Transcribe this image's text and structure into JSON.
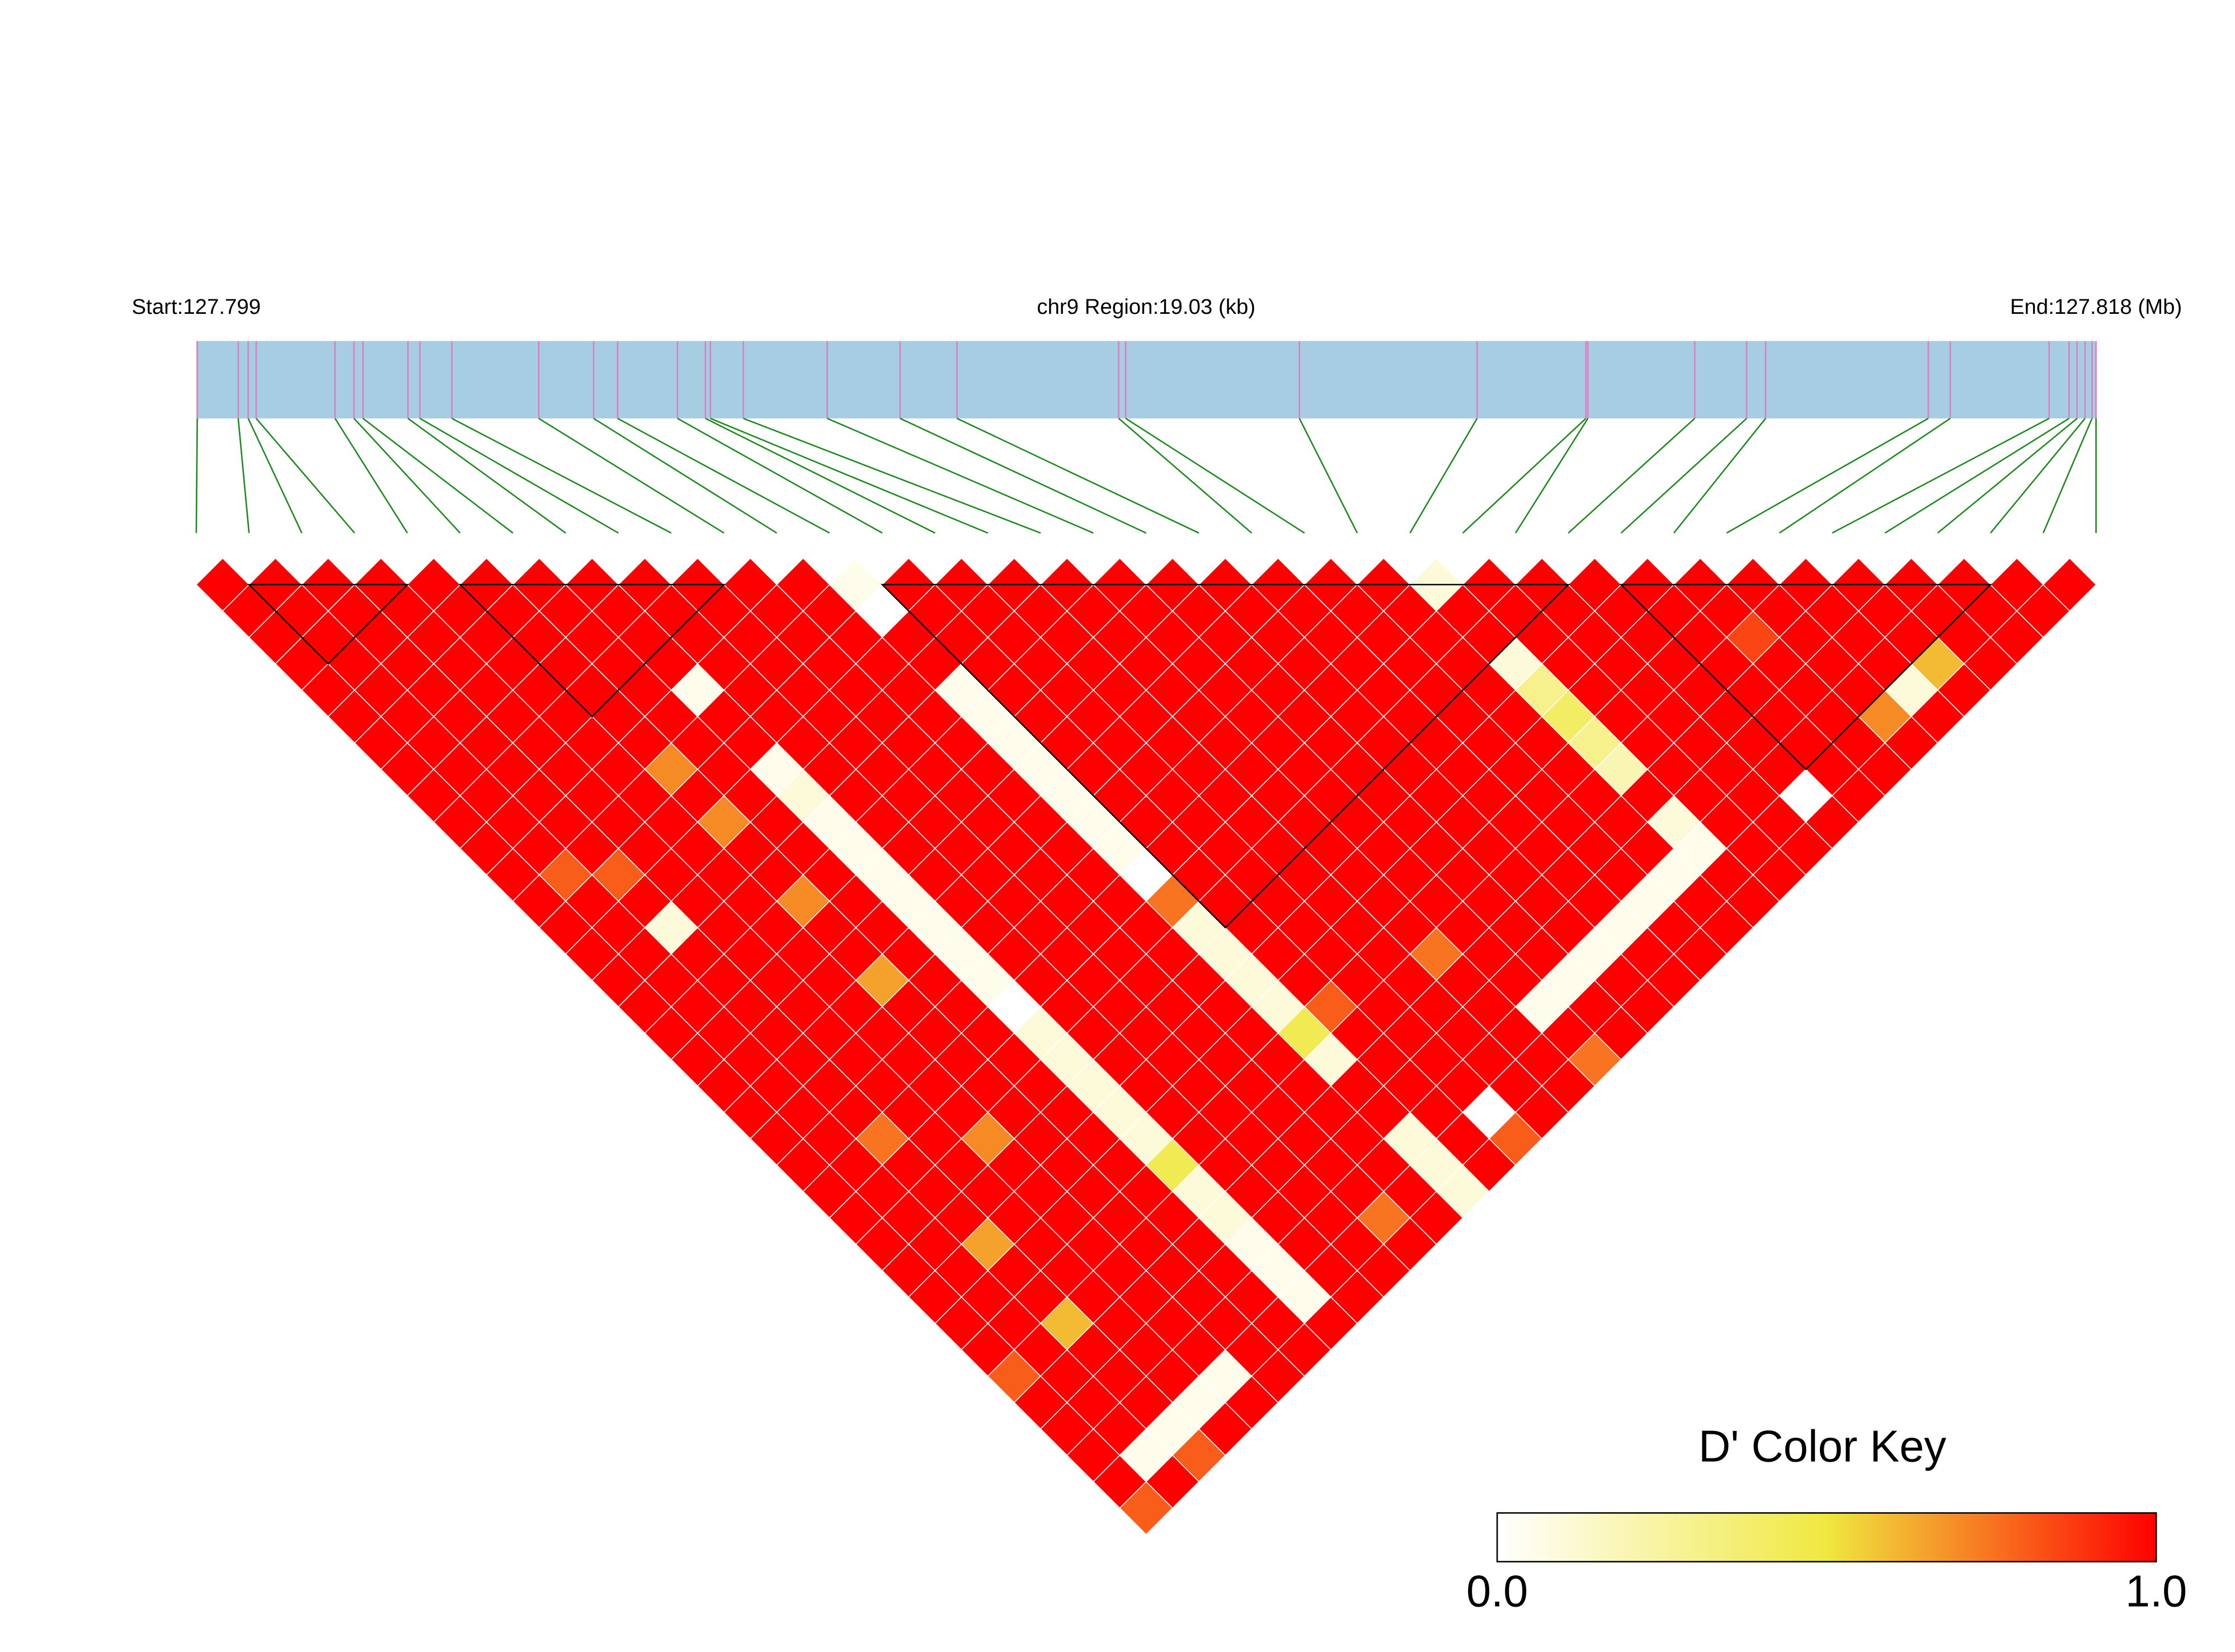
{
  "chart_data": {
    "type": "ld_heatmap",
    "start_label": "Start:127.799",
    "region_label": "chr9 Region:19.03 (kb)",
    "end_label": "End:127.818 (Mb)",
    "legend_title": "D' Color Key",
    "colorbar_ticks": [
      {
        "value": 0,
        "label": "0.0"
      },
      {
        "value": 1,
        "label": "1.0"
      }
    ],
    "color_scale": [
      "#ffffff",
      "#f0e840",
      "#ff0000"
    ],
    "track_color": "#a6cde1",
    "snp_line_color": "#e07cc4",
    "connector_color": "#1a8a1a",
    "xlim": [
      127.799,
      127.81803
    ],
    "snp_positions": [
      127.79901,
      127.79942,
      127.79952,
      127.7996,
      127.80039,
      127.80058,
      127.80067,
      127.80112,
      127.80124,
      127.80156,
      127.80243,
      127.80298,
      127.80322,
      127.80382,
      127.8041,
      127.80415,
      127.80448,
      127.80532,
      127.80605,
      127.80662,
      127.80824,
      127.80831,
      127.81005,
      127.81183,
      127.81292,
      127.81294,
      127.81401,
      127.81453,
      127.81472,
      127.81635,
      127.81657,
      127.81756,
      127.81776,
      127.81784,
      127.81792,
      127.81799,
      127.81803
    ],
    "blocks": [
      [
        1,
        4
      ],
      [
        5,
        10
      ],
      [
        13,
        26
      ],
      [
        27,
        34
      ]
    ],
    "ld_matrix": [
      [
        1,
        1,
        1,
        1,
        1,
        1,
        1,
        1,
        1,
        1,
        1,
        1,
        1,
        1,
        1,
        1,
        1,
        1,
        1,
        1,
        1,
        1,
        1,
        1,
        1,
        1,
        1,
        1,
        1,
        1,
        0.8,
        1,
        1,
        1,
        1,
        0.8
      ],
      [
        1,
        1,
        1,
        1,
        1,
        1,
        1,
        1,
        1,
        1,
        1,
        0.8,
        1,
        1,
        1,
        1,
        1,
        1,
        1,
        1,
        1,
        1,
        1,
        1,
        1,
        1,
        1,
        1,
        1,
        1,
        1,
        1,
        1,
        0.05,
        1
      ],
      [
        1,
        1,
        1,
        1,
        1,
        1,
        1,
        1,
        1,
        1,
        1,
        0.8,
        1,
        0.1,
        1,
        1,
        1,
        1,
        1,
        1,
        1,
        0.75,
        1,
        1,
        1,
        0.65,
        1,
        1,
        0.6,
        1,
        1,
        1,
        0.05,
        0.8
      ],
      [
        1,
        1,
        1,
        1,
        1,
        1,
        1,
        1,
        1,
        1,
        1,
        1,
        1,
        1,
        1,
        1,
        1,
        1,
        1,
        1,
        1,
        1,
        1,
        1,
        1,
        1,
        1,
        1,
        1,
        1,
        1,
        0.05,
        1
      ],
      [
        1,
        1,
        1,
        1,
        1,
        1,
        1,
        1,
        1,
        1,
        1,
        1,
        1,
        1,
        1,
        1,
        1,
        1,
        1,
        1,
        1,
        0.7,
        1,
        1,
        1,
        1,
        1,
        1,
        1,
        1,
        0.05,
        1
      ],
      [
        1,
        1,
        1,
        1,
        1,
        1,
        1,
        0.7,
        1,
        0.7,
        1,
        1,
        0.7,
        1,
        1,
        0.65,
        1,
        1,
        1,
        1,
        1,
        1,
        1,
        1,
        1,
        1,
        1,
        1,
        1,
        1,
        1
      ],
      [
        1,
        1,
        1,
        1,
        1,
        1,
        1,
        1,
        1,
        1,
        1,
        1,
        1,
        1,
        1,
        1,
        1,
        1,
        1,
        1,
        1,
        1,
        1,
        1,
        1,
        1,
        1,
        1,
        1,
        1
      ],
      [
        1,
        1,
        1,
        1,
        0.05,
        1,
        1,
        0.05,
        0.1,
        0.05,
        0.05,
        0.05,
        0.05,
        0.05,
        0.05,
        0.05,
        0,
        0.1,
        0.1,
        0.1,
        0.1,
        0.1,
        0.45,
        0.1,
        0.1,
        0.05,
        0.05,
        0.05,
        1
      ],
      [
        1,
        1,
        1,
        1,
        1,
        1,
        1,
        1,
        1,
        1,
        1,
        1,
        1,
        1,
        1,
        1,
        1,
        1,
        1,
        1,
        1,
        1,
        1,
        1,
        1,
        1,
        1,
        1
      ],
      [
        1,
        1,
        1,
        1,
        1,
        1,
        1,
        1,
        1,
        1,
        1,
        1,
        1,
        1,
        1,
        1,
        1,
        1,
        1,
        1,
        1,
        1,
        1,
        1,
        1,
        1,
        1
      ],
      [
        1,
        1,
        1,
        1,
        1,
        1,
        1,
        1,
        1,
        1,
        1,
        1,
        1,
        1,
        1,
        1,
        1,
        1,
        1,
        1,
        1,
        1,
        1,
        1,
        0.75,
        1
      ],
      [
        1,
        1,
        1,
        1,
        1,
        1,
        1,
        1,
        1,
        1,
        1,
        1,
        1,
        1,
        1,
        1,
        1,
        1,
        1,
        1,
        1,
        1,
        1,
        1,
        1
      ],
      [
        0.05,
        0,
        1,
        1,
        0.05,
        0.05,
        0.05,
        0.05,
        0.05,
        0.05,
        0.05,
        0,
        0.75,
        0.1,
        0.1,
        0.1,
        0.1,
        0.45,
        0.1,
        1,
        1,
        0.1,
        0.1,
        0.1
      ],
      [
        1,
        1,
        1,
        1,
        1,
        1,
        1,
        1,
        1,
        1,
        1,
        1,
        1,
        1,
        1,
        1,
        0.8,
        1,
        1,
        1,
        1,
        1,
        1
      ],
      [
        1,
        1,
        1,
        1,
        1,
        1,
        1,
        1,
        1,
        1,
        1,
        1,
        1,
        1,
        1,
        1,
        1,
        1,
        1,
        1,
        0,
        0.8
      ],
      [
        1,
        1,
        1,
        1,
        1,
        1,
        1,
        1,
        1,
        1,
        1,
        1,
        1,
        1,
        1,
        1,
        1,
        1,
        1,
        1,
        1
      ],
      [
        1,
        1,
        1,
        1,
        1,
        1,
        1,
        1,
        1,
        1,
        1,
        1,
        1,
        1,
        0.75,
        1,
        1,
        1,
        1,
        1
      ],
      [
        1,
        1,
        1,
        1,
        1,
        1,
        1,
        1,
        1,
        1,
        1,
        1,
        1,
        1,
        1,
        1,
        0.05,
        1,
        0.75
      ],
      [
        1,
        1,
        1,
        1,
        1,
        1,
        1,
        1,
        1,
        1,
        1,
        1,
        1,
        1,
        1,
        0.05,
        1,
        1
      ],
      [
        1,
        1,
        1,
        1,
        1,
        1,
        1,
        1,
        1,
        1,
        1,
        1,
        1,
        1,
        0.05,
        1,
        1
      ],
      [
        1,
        1,
        1,
        1,
        1,
        1,
        1,
        1,
        1,
        1,
        1,
        1,
        1,
        0.05,
        1,
        1
      ],
      [
        1,
        1,
        1,
        1,
        1,
        1,
        1,
        1,
        1,
        1,
        1,
        1,
        0.05,
        1,
        1
      ],
      [
        1,
        1,
        1,
        1,
        1,
        1,
        1,
        1,
        1,
        1,
        1,
        0.05,
        1,
        1
      ],
      [
        0.1,
        1,
        1,
        0.1,
        0.3,
        0.4,
        0.3,
        0.2,
        1,
        0.1,
        0.05,
        1,
        1
      ],
      [
        1,
        1,
        1,
        1,
        1,
        1,
        1,
        1,
        1,
        1,
        1,
        1
      ],
      [
        1,
        1,
        1,
        1,
        1,
        1,
        1,
        1,
        1,
        1,
        1
      ],
      [
        1,
        1,
        1,
        1,
        1,
        1,
        1,
        1,
        0,
        1
      ],
      [
        1,
        1,
        1,
        1,
        1,
        1,
        1,
        1,
        1
      ],
      [
        1,
        1,
        0.85,
        1,
        1,
        1,
        1,
        1
      ],
      [
        1,
        1,
        1,
        1,
        1,
        0.7,
        1
      ],
      [
        1,
        1,
        1,
        1,
        0.1,
        1
      ],
      [
        1,
        1,
        1,
        0.6,
        1
      ],
      [
        1,
        1,
        1,
        1
      ],
      [
        1,
        1,
        1
      ],
      [
        1,
        1
      ],
      [
        1
      ]
    ]
  }
}
